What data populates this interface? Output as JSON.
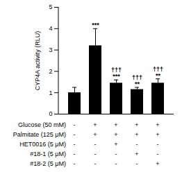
{
  "chart_data": {
    "type": "bar",
    "categories": [
      null,
      null,
      null,
      null,
      null
    ],
    "values": [
      1,
      3.2,
      1.45,
      1.15,
      1.45
    ],
    "errors": [
      0.25,
      0.8,
      0.15,
      0.1,
      0.2
    ],
    "annotations": [
      null,
      [
        "***"
      ],
      [
        "†††",
        "***"
      ],
      [
        "†††",
        "**"
      ],
      [
        "†††",
        "**"
      ]
    ],
    "color": "#000000",
    "ylabel": "CYP4A activity (RLU)",
    "ylim": [
      0,
      5
    ],
    "yticks": [
      0,
      1,
      2,
      3,
      4,
      5
    ],
    "treatments": [
      {
        "label": "Glucose (50 mM)",
        "signs": [
          "-",
          "+",
          "+",
          "+",
          "+"
        ]
      },
      {
        "label": "Palmitate (125 μM)",
        "signs": [
          "-",
          "+",
          "+",
          "+",
          "+"
        ]
      },
      {
        "label": "HET0016 (5 μM)",
        "signs": [
          "-",
          "-",
          "+",
          "-",
          "-"
        ]
      },
      {
        "label": "#18-1 (5 μM)",
        "signs": [
          "-",
          "-",
          "-",
          "+",
          "-"
        ]
      },
      {
        "label": "#18-2 (5 μM)",
        "signs": [
          "-",
          "-",
          "-",
          "-",
          "+"
        ]
      }
    ]
  }
}
